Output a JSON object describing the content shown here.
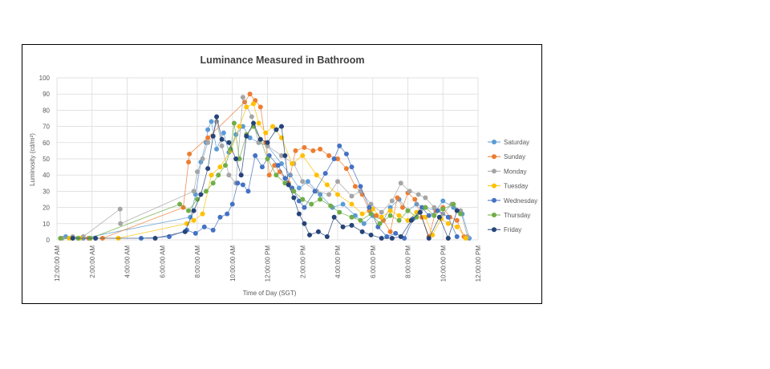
{
  "chart_data": {
    "type": "scatter",
    "title": "Luminance Measured in Bathroom",
    "xlabel": "Time of Day (SGT)",
    "ylabel": "Luminosity (cd/m²)",
    "xlim": [
      0,
      24
    ],
    "ylim": [
      0,
      100
    ],
    "x_ticks": [
      {
        "value": 0,
        "label": "12:00:00 AM"
      },
      {
        "value": 2,
        "label": "2:00:00 AM"
      },
      {
        "value": 4,
        "label": "4:00:00 AM"
      },
      {
        "value": 6,
        "label": "6:00:00 AM"
      },
      {
        "value": 8,
        "label": "8:00:00 AM"
      },
      {
        "value": 10,
        "label": "10:00:00 AM"
      },
      {
        "value": 12,
        "label": "12:00:00 PM"
      },
      {
        "value": 14,
        "label": "2:00:00 PM"
      },
      {
        "value": 16,
        "label": "4:00:00 PM"
      },
      {
        "value": 18,
        "label": "6:00:00 PM"
      },
      {
        "value": 20,
        "label": "8:00:00 PM"
      },
      {
        "value": 22,
        "label": "10:00:00 PM"
      },
      {
        "value": 24,
        "label": "12:00:00 PM"
      }
    ],
    "y_ticks": [
      0,
      10,
      20,
      30,
      40,
      50,
      60,
      70,
      80,
      90,
      100
    ],
    "grid": true,
    "legend_position": "right",
    "series": [
      {
        "name": "Saturday",
        "color": "#5B9BD5",
        "points": [
          [
            0.5,
            2
          ],
          [
            1.5,
            1
          ],
          [
            7.6,
            14
          ],
          [
            7.9,
            28
          ],
          [
            8.2,
            48
          ],
          [
            8.5,
            60
          ],
          [
            8.6,
            68
          ],
          [
            8.8,
            73
          ],
          [
            9.1,
            56
          ],
          [
            9.5,
            66
          ],
          [
            9.8,
            54
          ],
          [
            10.2,
            65
          ],
          [
            10.6,
            70
          ],
          [
            11.0,
            63
          ],
          [
            11.5,
            60
          ],
          [
            12.0,
            58
          ],
          [
            12.8,
            47
          ],
          [
            13.3,
            40
          ],
          [
            13.8,
            32
          ],
          [
            14.3,
            36
          ],
          [
            15.0,
            28
          ],
          [
            15.7,
            20
          ],
          [
            16.3,
            22
          ],
          [
            17.0,
            15
          ],
          [
            17.5,
            10
          ],
          [
            18.0,
            15
          ],
          [
            18.6,
            12
          ],
          [
            19.0,
            20
          ],
          [
            19.5,
            25
          ],
          [
            20.0,
            18
          ],
          [
            20.5,
            22
          ],
          [
            21.0,
            20
          ],
          [
            21.6,
            18
          ],
          [
            22.0,
            24
          ],
          [
            22.6,
            20
          ],
          [
            23.1,
            16
          ],
          [
            23.5,
            1
          ]
        ]
      },
      {
        "name": "Sunday",
        "color": "#ED7D31",
        "points": [
          [
            1.8,
            1
          ],
          [
            2.6,
            1
          ],
          [
            7.2,
            20
          ],
          [
            7.5,
            48
          ],
          [
            7.55,
            53
          ],
          [
            8.6,
            63
          ],
          [
            10.7,
            85
          ],
          [
            11.0,
            90
          ],
          [
            11.3,
            86
          ],
          [
            11.6,
            82
          ],
          [
            11.9,
            60
          ],
          [
            12.1,
            40
          ],
          [
            12.4,
            46
          ],
          [
            12.7,
            42
          ],
          [
            13.2,
            35
          ],
          [
            13.6,
            55
          ],
          [
            14.1,
            57
          ],
          [
            14.6,
            55
          ],
          [
            15.0,
            56
          ],
          [
            15.5,
            52
          ],
          [
            16.0,
            50
          ],
          [
            16.5,
            44
          ],
          [
            17.0,
            33
          ],
          [
            17.4,
            28
          ],
          [
            17.8,
            18
          ],
          [
            18.2,
            15
          ],
          [
            18.6,
            12
          ],
          [
            19.0,
            5
          ],
          [
            19.4,
            26
          ],
          [
            19.7,
            20
          ],
          [
            20.0,
            29
          ],
          [
            20.4,
            25
          ],
          [
            20.8,
            14
          ],
          [
            21.2,
            2
          ],
          [
            21.6,
            18
          ],
          [
            22.0,
            20
          ],
          [
            22.4,
            14
          ],
          [
            22.8,
            12
          ],
          [
            23.2,
            2
          ]
        ]
      },
      {
        "name": "Monday",
        "color": "#A5A5A5",
        "points": [
          [
            0.3,
            1
          ],
          [
            0.9,
            2
          ],
          [
            1.5,
            2
          ],
          [
            3.6,
            19
          ],
          [
            3.62,
            10
          ],
          [
            7.8,
            30
          ],
          [
            8.0,
            42
          ],
          [
            8.3,
            50
          ],
          [
            8.6,
            60
          ],
          [
            8.9,
            64
          ],
          [
            9.1,
            73
          ],
          [
            9.4,
            58
          ],
          [
            9.8,
            40
          ],
          [
            10.2,
            35
          ],
          [
            10.6,
            88
          ],
          [
            11.1,
            76
          ],
          [
            11.5,
            60
          ],
          [
            12.0,
            58
          ],
          [
            12.8,
            52
          ],
          [
            13.5,
            47
          ],
          [
            14.0,
            36
          ],
          [
            14.8,
            30
          ],
          [
            15.5,
            28
          ],
          [
            16.0,
            36
          ],
          [
            16.8,
            27
          ],
          [
            17.3,
            30
          ],
          [
            17.9,
            22
          ],
          [
            18.5,
            17
          ],
          [
            19.1,
            24
          ],
          [
            19.6,
            35
          ],
          [
            20.1,
            30
          ],
          [
            20.6,
            28
          ],
          [
            21.0,
            26
          ],
          [
            21.5,
            20
          ],
          [
            22.0,
            16
          ],
          [
            22.5,
            22
          ],
          [
            23.0,
            18
          ],
          [
            23.4,
            2
          ]
        ]
      },
      {
        "name": "Tuesday",
        "color": "#FFC000",
        "points": [
          [
            0.7,
            1
          ],
          [
            1.3,
            1
          ],
          [
            3.5,
            1
          ],
          [
            7.4,
            10
          ],
          [
            7.8,
            12
          ],
          [
            8.3,
            16
          ],
          [
            8.8,
            40
          ],
          [
            9.3,
            45
          ],
          [
            9.9,
            55
          ],
          [
            10.4,
            70
          ],
          [
            10.8,
            82
          ],
          [
            11.2,
            84
          ],
          [
            11.5,
            72
          ],
          [
            11.9,
            66
          ],
          [
            12.3,
            70
          ],
          [
            12.8,
            63
          ],
          [
            13.4,
            47
          ],
          [
            14.0,
            52
          ],
          [
            14.8,
            40
          ],
          [
            15.4,
            34
          ],
          [
            16.0,
            28
          ],
          [
            16.8,
            22
          ],
          [
            17.4,
            16
          ],
          [
            18.0,
            19
          ],
          [
            18.5,
            14
          ],
          [
            19.0,
            18
          ],
          [
            19.5,
            15
          ],
          [
            20.0,
            12
          ],
          [
            20.5,
            17
          ],
          [
            21.0,
            14
          ],
          [
            21.4,
            3
          ],
          [
            21.9,
            13
          ],
          [
            22.3,
            10
          ],
          [
            22.8,
            8
          ],
          [
            23.3,
            1
          ]
        ]
      },
      {
        "name": "Wednesday",
        "color": "#4472C4",
        "points": [
          [
            4.8,
            1
          ],
          [
            6.4,
            2
          ],
          [
            7.4,
            6
          ],
          [
            7.9,
            4
          ],
          [
            8.4,
            8
          ],
          [
            8.9,
            6
          ],
          [
            9.3,
            14
          ],
          [
            9.7,
            16
          ],
          [
            10.0,
            22
          ],
          [
            10.3,
            35
          ],
          [
            10.6,
            34
          ],
          [
            10.9,
            30
          ],
          [
            11.3,
            52
          ],
          [
            11.7,
            45
          ],
          [
            12.1,
            52
          ],
          [
            12.6,
            46
          ],
          [
            13.0,
            38
          ],
          [
            13.4,
            32
          ],
          [
            13.8,
            24
          ],
          [
            14.1,
            20
          ],
          [
            14.7,
            30
          ],
          [
            15.3,
            41
          ],
          [
            15.8,
            50
          ],
          [
            16.1,
            58
          ],
          [
            16.5,
            53
          ],
          [
            16.8,
            45
          ],
          [
            17.3,
            33
          ],
          [
            17.8,
            20
          ],
          [
            18.3,
            8
          ],
          [
            18.8,
            2
          ],
          [
            19.3,
            4
          ],
          [
            19.8,
            1
          ],
          [
            20.3,
            13
          ],
          [
            20.8,
            20
          ],
          [
            21.2,
            15
          ],
          [
            21.7,
            18
          ],
          [
            22.3,
            14
          ],
          [
            22.8,
            2
          ]
        ]
      },
      {
        "name": "Thursday",
        "color": "#70AD47",
        "points": [
          [
            0.2,
            1
          ],
          [
            1.2,
            1
          ],
          [
            1.9,
            1
          ],
          [
            7.0,
            22
          ],
          [
            7.5,
            18
          ],
          [
            8.0,
            25
          ],
          [
            8.5,
            30
          ],
          [
            8.9,
            35
          ],
          [
            9.2,
            40
          ],
          [
            9.6,
            46
          ],
          [
            9.9,
            56
          ],
          [
            10.1,
            72
          ],
          [
            10.4,
            50
          ],
          [
            10.8,
            65
          ],
          [
            11.2,
            70
          ],
          [
            11.6,
            62
          ],
          [
            12.0,
            50
          ],
          [
            12.5,
            40
          ],
          [
            13.0,
            35
          ],
          [
            13.5,
            30
          ],
          [
            14.0,
            25
          ],
          [
            14.5,
            22
          ],
          [
            15.0,
            25
          ],
          [
            15.6,
            21
          ],
          [
            16.1,
            17
          ],
          [
            16.8,
            14
          ],
          [
            17.3,
            12
          ],
          [
            17.9,
            16
          ],
          [
            18.4,
            10
          ],
          [
            19.0,
            15
          ],
          [
            19.5,
            12
          ],
          [
            20.0,
            18
          ],
          [
            20.5,
            14
          ],
          [
            21.0,
            20
          ],
          [
            21.5,
            15
          ],
          [
            22.0,
            19
          ],
          [
            22.6,
            22
          ],
          [
            23.0,
            16
          ]
        ]
      },
      {
        "name": "Friday",
        "color": "#264478",
        "points": [
          [
            0.9,
            1
          ],
          [
            2.2,
            1
          ],
          [
            5.6,
            1
          ],
          [
            7.3,
            5
          ],
          [
            7.8,
            18
          ],
          [
            8.2,
            28
          ],
          [
            8.6,
            44
          ],
          [
            8.9,
            64
          ],
          [
            9.1,
            76
          ],
          [
            9.4,
            62
          ],
          [
            9.8,
            60
          ],
          [
            10.2,
            50
          ],
          [
            10.5,
            40
          ],
          [
            10.8,
            64
          ],
          [
            11.2,
            72
          ],
          [
            11.6,
            62
          ],
          [
            12.0,
            60
          ],
          [
            12.5,
            68
          ],
          [
            12.8,
            70
          ],
          [
            13.0,
            52
          ],
          [
            13.2,
            34
          ],
          [
            13.5,
            26
          ],
          [
            13.8,
            16
          ],
          [
            14.1,
            10
          ],
          [
            14.4,
            3
          ],
          [
            14.9,
            5
          ],
          [
            15.4,
            2
          ],
          [
            15.8,
            14
          ],
          [
            16.3,
            8
          ],
          [
            16.8,
            9
          ],
          [
            17.4,
            5
          ],
          [
            17.9,
            3
          ],
          [
            18.5,
            1
          ],
          [
            19.1,
            1
          ],
          [
            19.6,
            2
          ],
          [
            20.2,
            12
          ],
          [
            20.7,
            17
          ],
          [
            21.2,
            1
          ],
          [
            21.8,
            14
          ],
          [
            22.3,
            1
          ],
          [
            22.8,
            18
          ]
        ]
      }
    ]
  }
}
